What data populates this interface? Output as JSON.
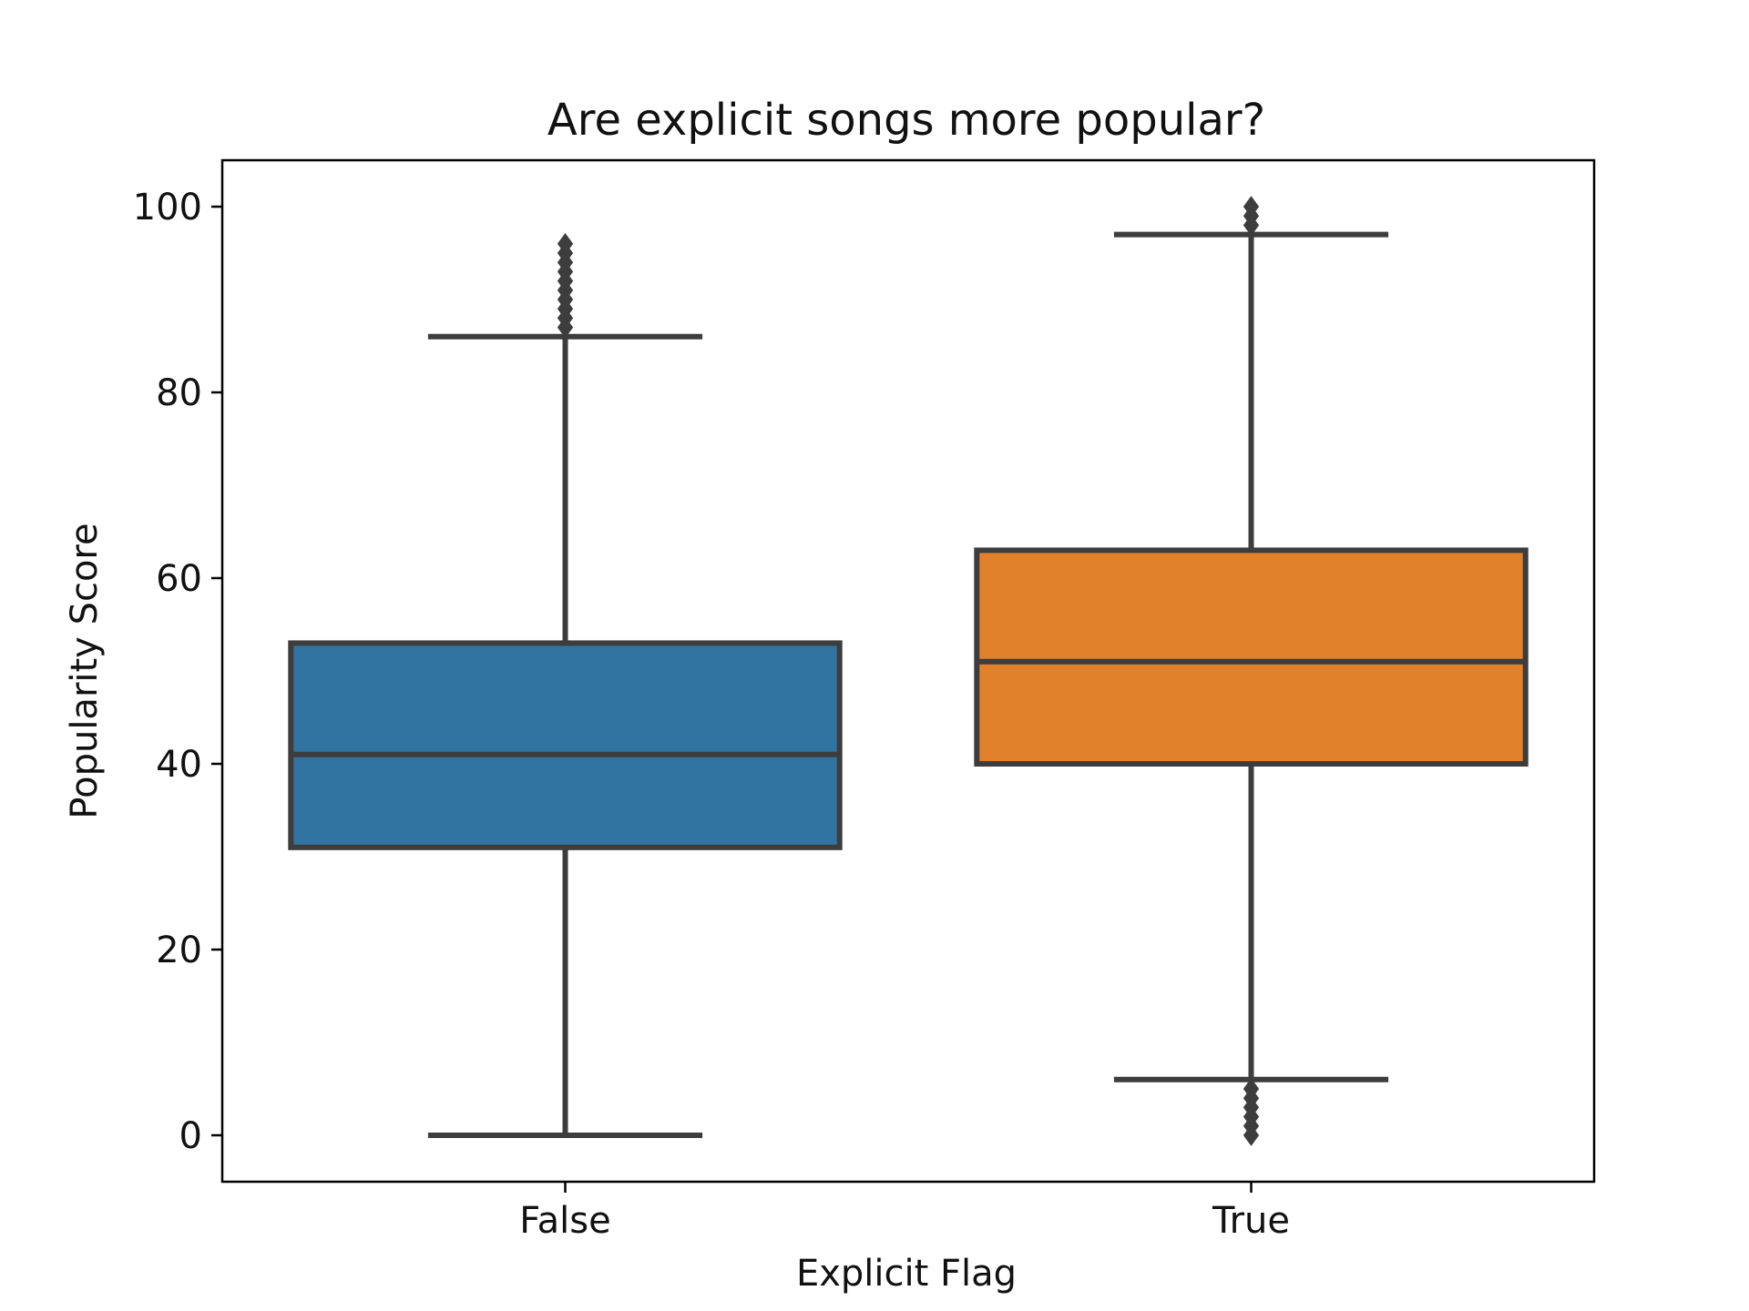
{
  "chart_data": {
    "type": "box",
    "title": "Are explicit songs more popular?",
    "xlabel": "Explicit Flag",
    "ylabel": "Popularity Score",
    "categories": [
      "False",
      "True"
    ],
    "ylim": [
      -5,
      105
    ],
    "yticks": [
      0,
      20,
      40,
      60,
      80,
      100
    ],
    "grid": false,
    "legend": "none",
    "boxes": [
      {
        "category": "False",
        "color": "#3274A1",
        "whisker_low": 0,
        "q1": 31,
        "median": 41,
        "q3": 53,
        "whisker_high": 86,
        "outliers": [
          87,
          88,
          89,
          90,
          91,
          92,
          93,
          94,
          95,
          96
        ]
      },
      {
        "category": "True",
        "color": "#E1812C",
        "whisker_low": 6,
        "q1": 40,
        "median": 51,
        "q3": 63,
        "whisker_high": 97,
        "outliers": [
          0,
          1,
          2,
          3,
          4,
          5,
          98,
          99,
          100
        ]
      }
    ]
  }
}
